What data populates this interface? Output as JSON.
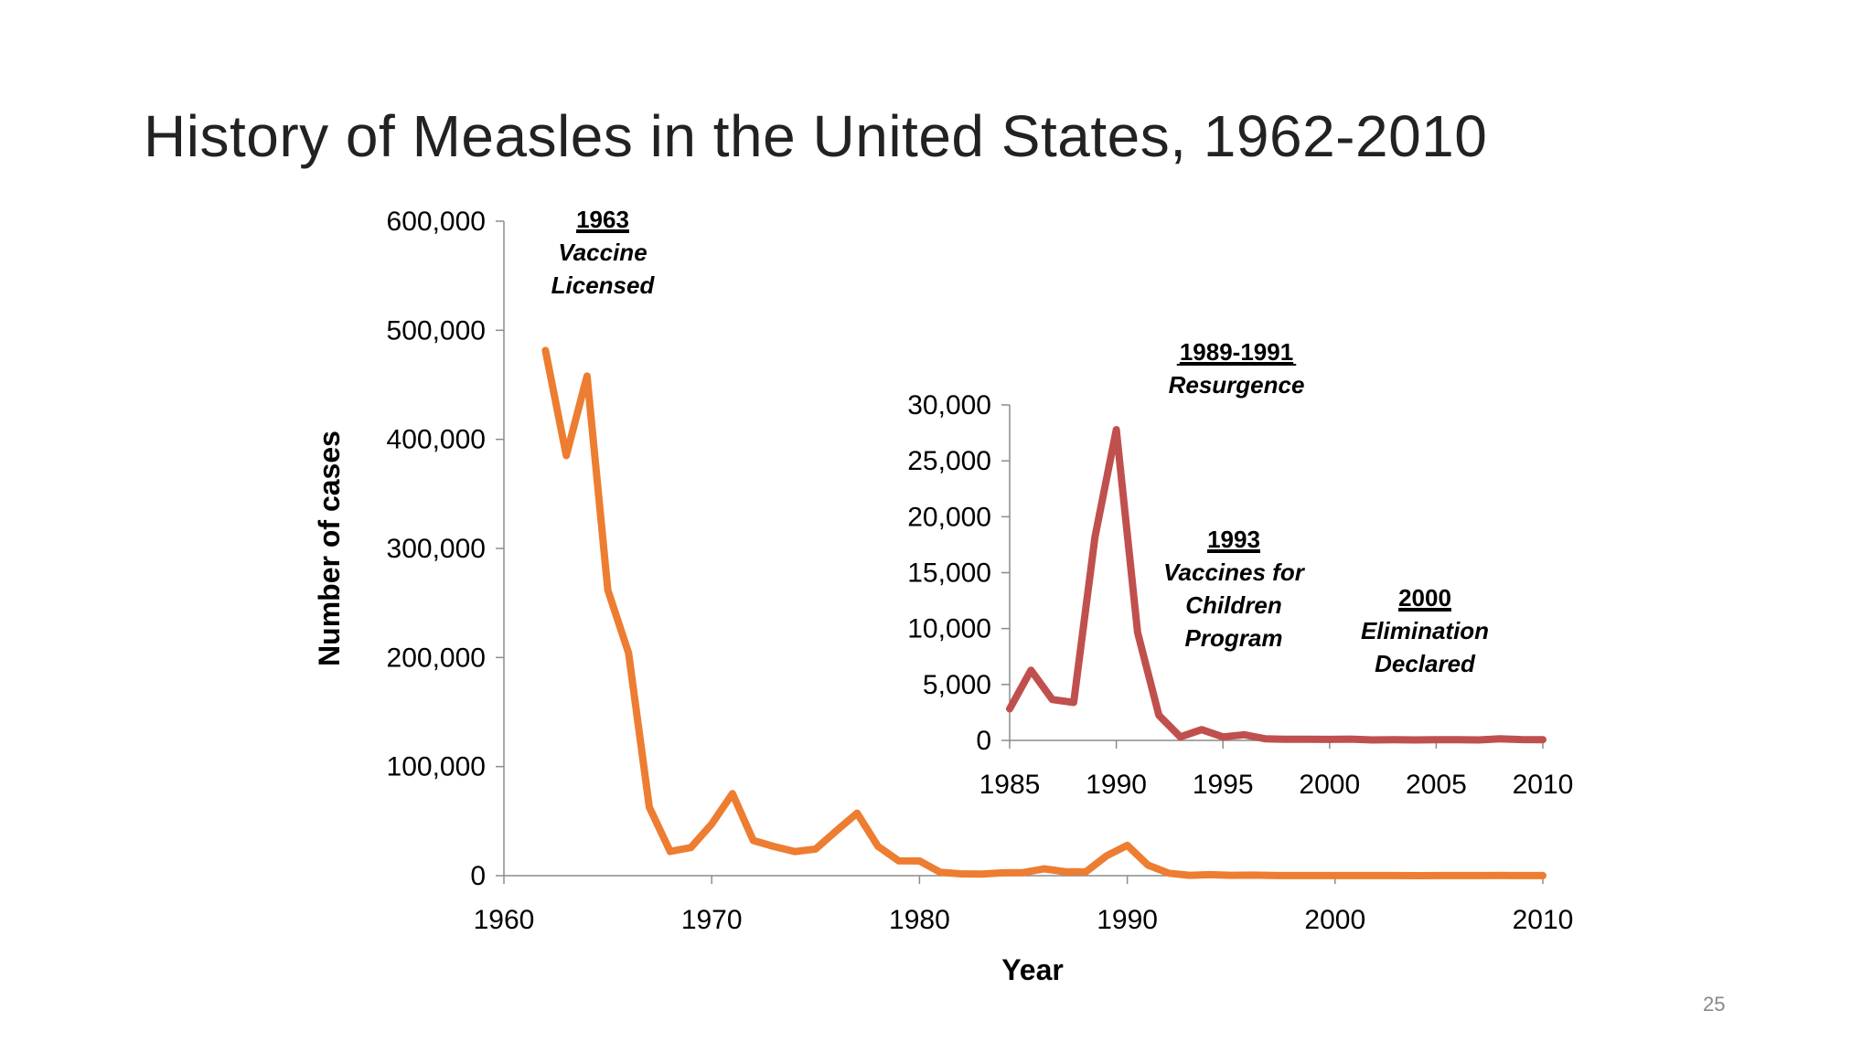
{
  "slide": {
    "title": "History of Measles in the United States, 1962-2010",
    "page_number": "25"
  },
  "chart_data": [
    {
      "type": "line",
      "title": "",
      "xlabel": "Year",
      "ylabel": "Number of cases",
      "xlim": [
        1960,
        2010
      ],
      "ylim": [
        0,
        600000
      ],
      "x_ticks": [
        "1960",
        "1970",
        "1980",
        "1990",
        "2000",
        "2010"
      ],
      "y_ticks": [
        "0",
        "100,000",
        "200,000",
        "300,000",
        "400,000",
        "500,000",
        "600,000"
      ],
      "grid": false,
      "color": "#ED7D31",
      "series": [
        {
          "x": [
            1962,
            1963,
            1964,
            1965,
            1966,
            1967,
            1968,
            1969,
            1970,
            1971,
            1972,
            1973,
            1974,
            1975,
            1976,
            1977,
            1978,
            1979,
            1980,
            1981,
            1982,
            1983,
            1984,
            1985,
            1986,
            1987,
            1988,
            1989,
            1990,
            1991,
            1992,
            1993,
            1994,
            1995,
            1996,
            1997,
            1998,
            1999,
            2000,
            2001,
            2002,
            2003,
            2004,
            2005,
            2006,
            2007,
            2008,
            2009,
            2010
          ],
          "y": [
            481530,
            385156,
            458083,
            261904,
            204136,
            62705,
            22231,
            25826,
            47351,
            75290,
            32275,
            26690,
            22094,
            24374,
            41126,
            57345,
            26871,
            13597,
            13506,
            3124,
            1714,
            1497,
            2587,
            2822,
            6282,
            3655,
            3396,
            18193,
            27786,
            9643,
            2237,
            312,
            963,
            309,
            508,
            138,
            100,
            100,
            86,
            116,
            44,
            56,
            37,
            66,
            55,
            43,
            140,
            71,
            63
          ]
        }
      ],
      "annotations": [
        {
          "title": "1963",
          "lines": [
            "Vaccine",
            "Licensed"
          ]
        }
      ]
    },
    {
      "type": "line",
      "title": "",
      "xlabel": "",
      "ylabel": "",
      "xlim": [
        1985,
        2010
      ],
      "ylim": [
        0,
        30000
      ],
      "x_ticks": [
        "1985",
        "1990",
        "1995",
        "2000",
        "2005",
        "2010"
      ],
      "y_ticks": [
        "0",
        "5,000",
        "10,000",
        "15,000",
        "20,000",
        "25,000",
        "30,000"
      ],
      "grid": false,
      "color": "#C0504D",
      "series": [
        {
          "x": [
            1985,
            1986,
            1987,
            1988,
            1989,
            1990,
            1991,
            1992,
            1993,
            1994,
            1995,
            1996,
            1997,
            1998,
            1999,
            2000,
            2001,
            2002,
            2003,
            2004,
            2005,
            2006,
            2007,
            2008,
            2009,
            2010
          ],
          "y": [
            2822,
            6282,
            3655,
            3396,
            18193,
            27786,
            9643,
            2237,
            312,
            963,
            309,
            508,
            138,
            100,
            100,
            86,
            116,
            44,
            56,
            37,
            66,
            55,
            43,
            140,
            71,
            63
          ]
        }
      ],
      "annotations": [
        {
          "title": "1989-1991",
          "lines": [
            "Resurgence"
          ]
        },
        {
          "title": "1993",
          "lines": [
            "Vaccines for",
            "Children",
            "Program"
          ]
        },
        {
          "title": "2000",
          "lines": [
            "Elimination",
            "Declared"
          ]
        }
      ]
    }
  ]
}
